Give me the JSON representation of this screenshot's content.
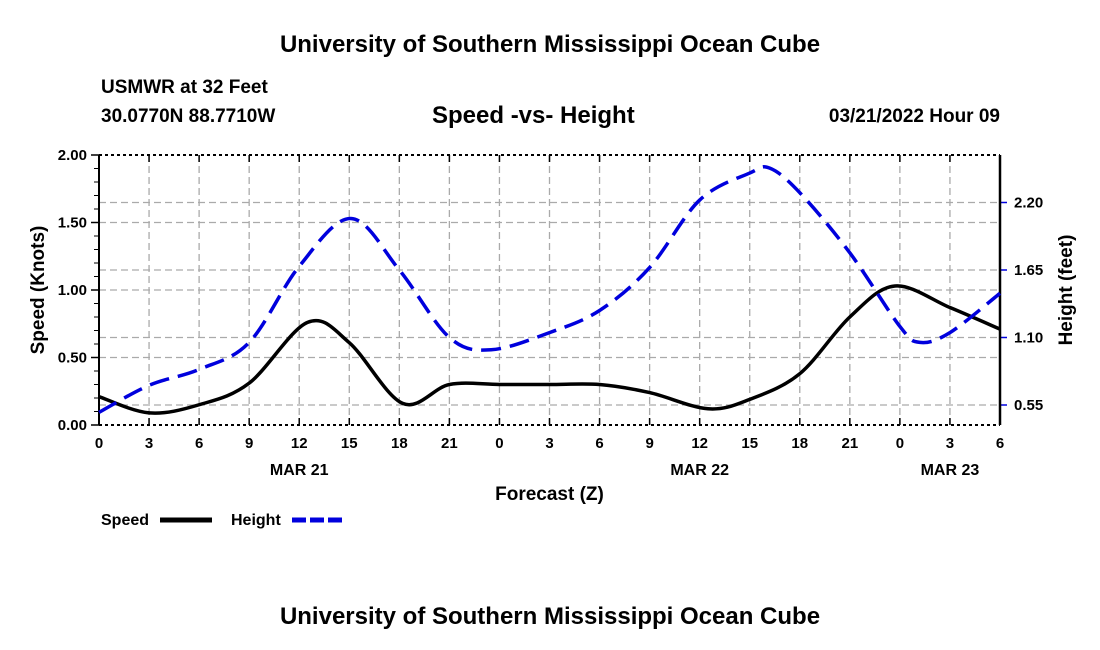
{
  "header": {
    "title": "University of Southern Mississippi Ocean Cube",
    "station": "USMWR at 32 Feet",
    "location": "30.0770N  88.7710W",
    "subtitle": "Speed -vs- Height",
    "datetime": "03/21/2022 Hour 09"
  },
  "footer": {
    "title": "University of Southern Mississippi Ocean Cube"
  },
  "chart_data": {
    "type": "line",
    "title": "Speed -vs- Height",
    "xlabel": "Forecast (Z)",
    "ylabel": "Speed (Knots)",
    "y2label": "Height (feet)",
    "xlim": [
      0,
      54
    ],
    "ylim": [
      0,
      2.0
    ],
    "y2lim": [
      0.387,
      2.587
    ],
    "grid": true,
    "x_ticks": [
      0,
      3,
      6,
      9,
      12,
      15,
      18,
      21,
      24,
      27,
      30,
      33,
      36,
      39,
      42,
      45,
      48,
      51,
      54
    ],
    "x_tick_labels": [
      "0",
      "3",
      "6",
      "9",
      "12",
      "15",
      "18",
      "21",
      "0",
      "3",
      "6",
      "9",
      "12",
      "15",
      "18",
      "21",
      "0",
      "3",
      "6"
    ],
    "date_labels": [
      {
        "hour": 12,
        "label": "MAR 21"
      },
      {
        "hour": 36,
        "label": "MAR 22"
      },
      {
        "hour": 51,
        "label": "MAR 23"
      }
    ],
    "y_ticks": [
      0,
      0.5,
      1.0,
      1.5,
      2.0
    ],
    "y_tick_labels": [
      "0.00",
      "0.50",
      "1.00",
      "1.50",
      "2.00"
    ],
    "y2_ticks": [
      0.55,
      1.1,
      1.65,
      2.2
    ],
    "y2_tick_labels": [
      "0.55",
      "1.10",
      "1.65",
      "2.20"
    ],
    "legend_position": "bottom-left",
    "series": [
      {
        "name": "Speed",
        "axis": "left",
        "color": "#000000",
        "dashed": false,
        "x": [
          0,
          3,
          6,
          9,
          12.5,
          15,
          18.2,
          21,
          24,
          27,
          30,
          33,
          36.5,
          39,
          42,
          45,
          47.7,
          51,
          54
        ],
        "values": [
          0.21,
          0.09,
          0.15,
          0.31,
          0.76,
          0.61,
          0.16,
          0.3,
          0.3,
          0.3,
          0.3,
          0.24,
          0.12,
          0.19,
          0.38,
          0.8,
          1.03,
          0.87,
          0.71
        ]
      },
      {
        "name": "Height",
        "axis": "right",
        "color": "#0000dd",
        "dashed": true,
        "x": [
          0,
          3,
          6,
          9,
          12,
          15.1,
          18,
          21,
          23.5,
          27,
          30,
          33,
          36,
          39,
          40.2,
          42,
          45,
          48,
          49.2,
          51,
          54
        ],
        "values": [
          0.49,
          0.71,
          0.84,
          1.06,
          1.68,
          2.07,
          1.65,
          1.1,
          1.0,
          1.14,
          1.32,
          1.67,
          2.22,
          2.44,
          2.48,
          2.28,
          1.79,
          1.19,
          1.06,
          1.14,
          1.46
        ]
      }
    ]
  }
}
